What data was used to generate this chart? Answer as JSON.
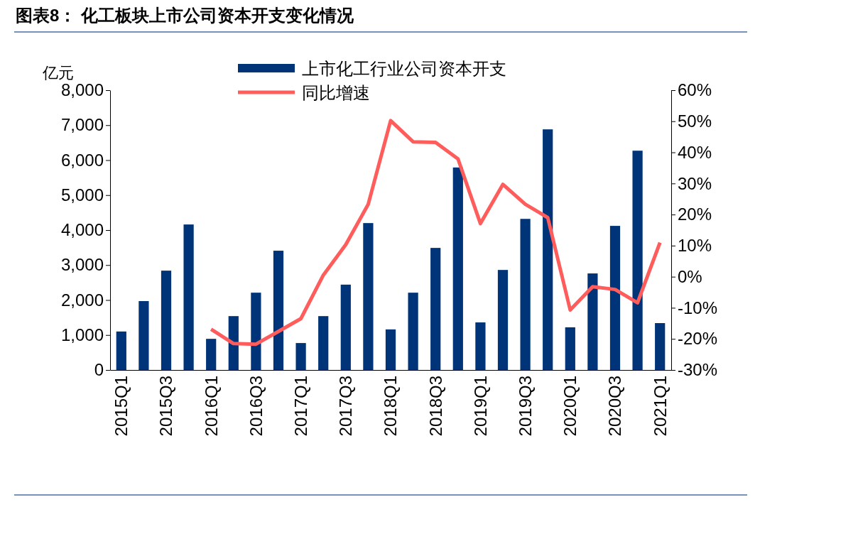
{
  "chart_data": {
    "type": "bar",
    "title": "图表8：  化工板块上市公司资本开支变化情况",
    "ylabel": "亿元",
    "categories": [
      "2015Q1",
      null,
      "2015Q3",
      null,
      "2016Q1",
      null,
      "2016Q3",
      null,
      "2017Q1",
      null,
      "2017Q3",
      null,
      "2018Q1",
      null,
      "2018Q3",
      null,
      "2019Q1",
      null,
      "2019Q3",
      null,
      "2020Q1",
      null,
      "2020Q3",
      null,
      "2021Q1"
    ],
    "series": [
      {
        "name": "上市化工行业公司资本开支",
        "color": "#003478",
        "values": [
          1100,
          1970,
          2840,
          4160,
          890,
          1540,
          2210,
          3410,
          770,
          1540,
          2440,
          4200,
          1160,
          2210,
          3490,
          5790,
          1360,
          2860,
          4320,
          6880,
          1220,
          2760,
          4120,
          6270,
          1340
        ]
      },
      {
        "name": "同比增速",
        "type": "line",
        "axis": "y2",
        "color": "#ff5c5c",
        "values": [
          null,
          null,
          null,
          null,
          -16.9,
          -21.5,
          -21.7,
          -17.6,
          -13.5,
          0.5,
          10.3,
          23.3,
          50.2,
          43.4,
          43.2,
          37.9,
          17.1,
          29.7,
          23.3,
          19,
          -10.7,
          -3.2,
          -4.1,
          -8.4,
          11
        ]
      }
    ],
    "ylim": [
      0,
      8000
    ],
    "yticks": [
      {
        "value": 0,
        "label": "0"
      },
      {
        "value": 1000,
        "label": "1,000"
      },
      {
        "value": 2000,
        "label": "2,000"
      },
      {
        "value": 3000,
        "label": "3,000"
      },
      {
        "value": 4000,
        "label": "4,000"
      },
      {
        "value": 5000,
        "label": "5,000"
      },
      {
        "value": 6000,
        "label": "6,000"
      },
      {
        "value": 7000,
        "label": "7,000"
      },
      {
        "value": 8000,
        "label": "8,000"
      }
    ],
    "y2lim": [
      -30,
      60
    ],
    "y2ticks": [
      {
        "value": -30,
        "label": "-30%"
      },
      {
        "value": -20,
        "label": "-20%"
      },
      {
        "value": -10,
        "label": "-10%"
      },
      {
        "value": 0,
        "label": "0%"
      },
      {
        "value": 10,
        "label": "10%"
      },
      {
        "value": 20,
        "label": "20%"
      },
      {
        "value": 30,
        "label": "30%"
      },
      {
        "value": 40,
        "label": "40%"
      },
      {
        "value": 50,
        "label": "50%"
      },
      {
        "value": 60,
        "label": "60%"
      }
    ],
    "legend": "top",
    "grid": false
  }
}
